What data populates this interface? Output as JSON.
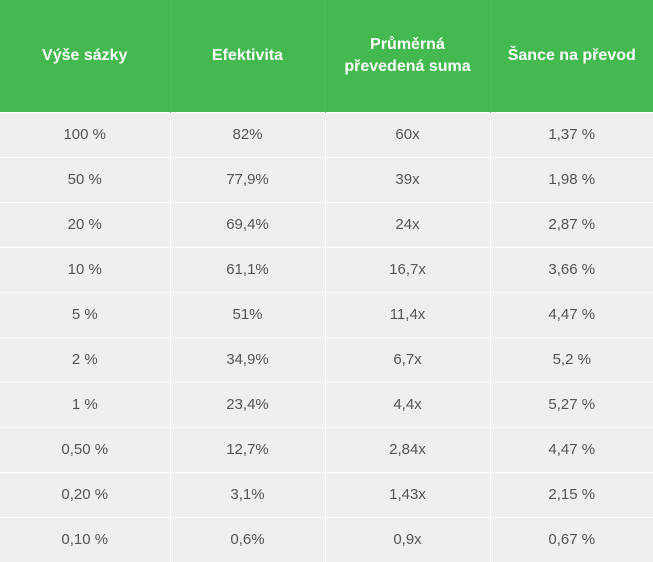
{
  "table": {
    "headers": [
      "Výše sázky",
      "Efektivita",
      "Průměrná převedená suma",
      "Šance na převod"
    ],
    "rows": [
      [
        "100 %",
        "82%",
        "60x",
        "1,37 %"
      ],
      [
        "50 %",
        "77,9%",
        "39x",
        "1,98 %"
      ],
      [
        "20 %",
        "69,4%",
        "24x",
        "2,87 %"
      ],
      [
        "10 %",
        "61,1%",
        "16,7x",
        "3,66 %"
      ],
      [
        "5 %",
        "51%",
        "11,4x",
        "4,47 %"
      ],
      [
        "2 %",
        "34,9%",
        "6,7x",
        "5,2 %"
      ],
      [
        "1 %",
        "23,4%",
        "4,4x",
        "5,27 %"
      ],
      [
        "0,50 %",
        "12,7%",
        "2,84x",
        "4,47 %"
      ],
      [
        "0,20 %",
        "3,1%",
        "1,43x",
        "2,15 %"
      ],
      [
        "0,10 %",
        "0,6%",
        "0,9x",
        "0,67 %"
      ]
    ]
  },
  "colors": {
    "header_bg": "#43b94f",
    "header_text": "#ffffff",
    "row_bg": "#f0efef",
    "cell_text": "#555555"
  }
}
